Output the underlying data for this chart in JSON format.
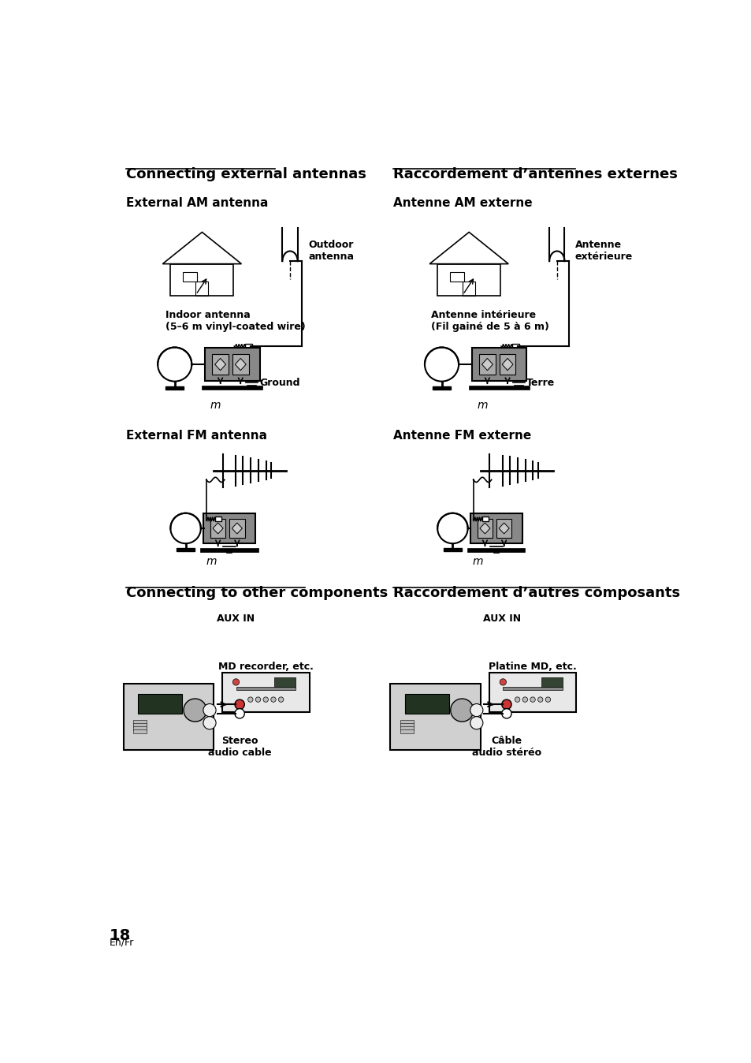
{
  "page_number": "18",
  "page_lang": "En/Fr",
  "bg_color": "#ffffff",
  "text_color": "#000000",
  "sections": {
    "left_title": "Connecting external antennas",
    "right_title": "Raccordement d’antennes externes",
    "left_am_label": "External AM antenna",
    "right_am_label": "Antenne AM externe",
    "left_fm_label": "External FM antenna",
    "right_fm_label": "Antenne FM externe",
    "left_other_title": "Connecting to other components",
    "right_other_title": "Raccordement d’autres composants"
  },
  "am_left": {
    "outdoor_label": "Outdoor\nantenna",
    "indoor_label": "Indoor antenna\n(5–6 m vinyl-coated wire)",
    "ground_label": "Ground",
    "aux_label": "AUX IN",
    "md_label": "MD recorder, etc.",
    "stereo_label": "Stereo\naudio cable"
  },
  "am_right": {
    "outdoor_label": "Antenne\nextérieure",
    "indoor_label": "Antenne intérieure\n(Fil gainé de 5 à 6 m)",
    "ground_label": "Terre",
    "aux_label": "AUX IN",
    "md_label": "Platine MD, etc.",
    "stereo_label": "Câble\naudio stéréo"
  }
}
